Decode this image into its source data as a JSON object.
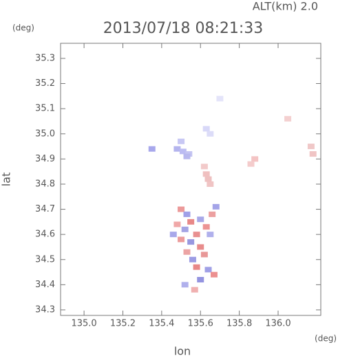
{
  "chart_data": {
    "type": "scatter",
    "title": "2013/07/18 08:21:33",
    "altitude_label": "ALT(km) 2.0",
    "x_unit": "(deg)",
    "y_unit": "(deg)",
    "x_label": "lon",
    "y_label": "lat",
    "xlim": [
      134.879,
      136.22
    ],
    "ylim": [
      34.278,
      35.36
    ],
    "xticks": [
      {
        "value": 135.0,
        "label": "135.0"
      },
      135.2,
      135.4,
      135.6,
      135.8,
      {
        "value": 136.0,
        "label": "136.0"
      }
    ],
    "yticks": [
      34.3,
      34.4,
      34.5,
      34.6,
      34.7,
      34.8,
      34.9,
      {
        "value": 35.0,
        "label": "35.0"
      },
      35.1,
      35.2,
      35.3
    ],
    "x": [
      135.48,
      135.51,
      135.54,
      135.5,
      135.53,
      135.63,
      135.65,
      135.7,
      135.35,
      135.63,
      135.65,
      135.62,
      135.64,
      135.88,
      135.86,
      136.05,
      136.17,
      136.18,
      135.5,
      135.53,
      135.55,
      135.6,
      135.63,
      135.58,
      135.52,
      135.5,
      135.55,
      135.6,
      135.65,
      135.62,
      135.56,
      135.58,
      135.64,
      135.67,
      135.6,
      135.48,
      135.46,
      135.66,
      135.68,
      135.53,
      135.57,
      135.52
    ],
    "values": [
      34.94,
      34.93,
      34.92,
      34.97,
      34.91,
      35.02,
      35.0,
      35.14,
      34.94,
      34.84,
      34.8,
      34.87,
      34.82,
      34.9,
      34.88,
      35.06,
      34.95,
      34.92,
      34.7,
      34.68,
      34.65,
      34.66,
      34.63,
      34.6,
      34.62,
      34.58,
      34.57,
      34.55,
      34.6,
      34.52,
      34.5,
      34.47,
      34.46,
      34.44,
      34.42,
      34.64,
      34.6,
      34.68,
      34.71,
      34.53,
      34.38,
      34.4
    ],
    "colors": [
      "#b4b4ee",
      "#bcbcf2",
      "#c4c4f2",
      "#c8c8f4",
      "#b8b8ee",
      "#d8d8f8",
      "#dcdcf8",
      "#e4e4fa",
      "#a8a8ec",
      "#f0c0c0",
      "#f0c4c4",
      "#f2caca",
      "#eec0c0",
      "#f4c4c4",
      "#f4cccc",
      "#f4d0d0",
      "#f0c8c8",
      "#f0c4c4",
      "#ec9a9a",
      "#a0a0e8",
      "#e88888",
      "#a8a8e8",
      "#ec9494",
      "#e89090",
      "#a4a4e4",
      "#ec9c9c",
      "#9898e0",
      "#e88c8c",
      "#b0b0ec",
      "#e89898",
      "#9c9ce4",
      "#e88888",
      "#a0a0e6",
      "#ec9090",
      "#9494e0",
      "#f0a8a8",
      "#a8a8ea",
      "#eca0a0",
      "#a4a4e8",
      "#eca4a4",
      "#f0b0b0",
      "#b0b0ec"
    ]
  }
}
